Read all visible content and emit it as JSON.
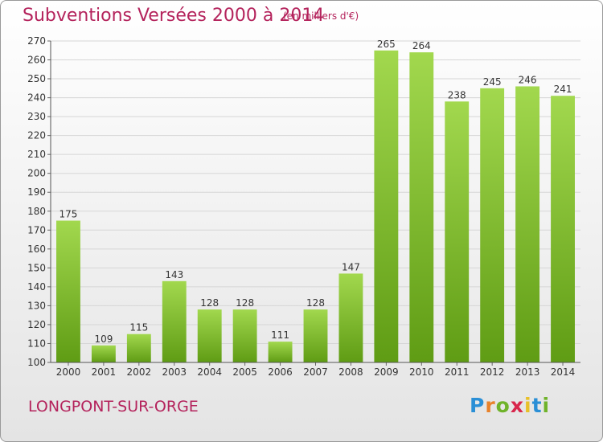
{
  "header": {
    "title": "Subventions Versées 2000 à 2014",
    "subtitle": "(en milliers d'€)"
  },
  "footer": {
    "commune": "LONGPONT-SUR-ORGE",
    "logo": "Proxiti"
  },
  "colors": {
    "accent": "#b4235c",
    "bar_light": "#a2d84e",
    "bar_dark": "#5f9c14"
  },
  "chart_data": {
    "type": "bar",
    "categories": [
      "2000",
      "2001",
      "2002",
      "2003",
      "2004",
      "2005",
      "2006",
      "2007",
      "2008",
      "2009",
      "2010",
      "2011",
      "2012",
      "2013",
      "2014"
    ],
    "values": [
      175,
      109,
      115,
      143,
      128,
      128,
      111,
      128,
      147,
      265,
      264,
      238,
      245,
      246,
      241
    ],
    "ylim": [
      100,
      270
    ],
    "ytick_step": 10,
    "grid": true,
    "data_labels": true
  }
}
